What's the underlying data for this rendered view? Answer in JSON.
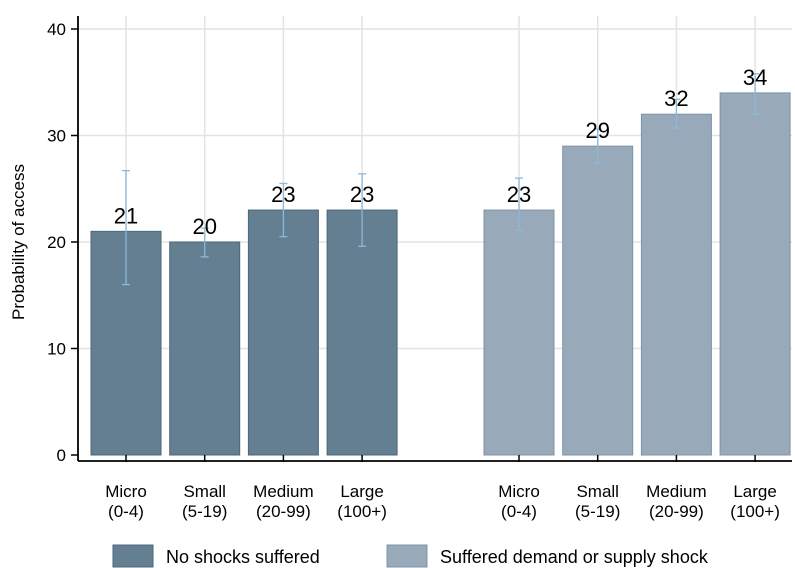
{
  "chart_data": {
    "type": "bar",
    "ylabel": "Probability of access",
    "ylim": [
      0,
      40
    ],
    "yticks": [
      0,
      10,
      20,
      30,
      40
    ],
    "grid": true,
    "legend_position": "bottom",
    "categories": [
      [
        "Micro",
        "(0-4)"
      ],
      [
        "Small",
        "(5-19)"
      ],
      [
        "Medium",
        "(20-99)"
      ],
      [
        "Large",
        "(100+)"
      ]
    ],
    "series": [
      {
        "name": "No shocks suffered",
        "color": "#647f92",
        "values": [
          21,
          20,
          23,
          23
        ],
        "labels": [
          "21",
          "20",
          "23",
          "23"
        ],
        "ci": [
          [
            16,
            26.7
          ],
          [
            18.6,
            21.3
          ],
          [
            20.5,
            25.5
          ],
          [
            19.6,
            26.4
          ]
        ]
      },
      {
        "name": "Suffered demand or supply shock",
        "color": "#98a9ba",
        "values": [
          23,
          29,
          32,
          34
        ],
        "labels": [
          "23",
          "29",
          "32",
          "34"
        ],
        "ci": [
          [
            21.1,
            26
          ],
          [
            27.4,
            30.6
          ],
          [
            30.7,
            33.4
          ],
          [
            32,
            35.8
          ]
        ]
      }
    ],
    "errorbar_color": "#8cb8da"
  }
}
